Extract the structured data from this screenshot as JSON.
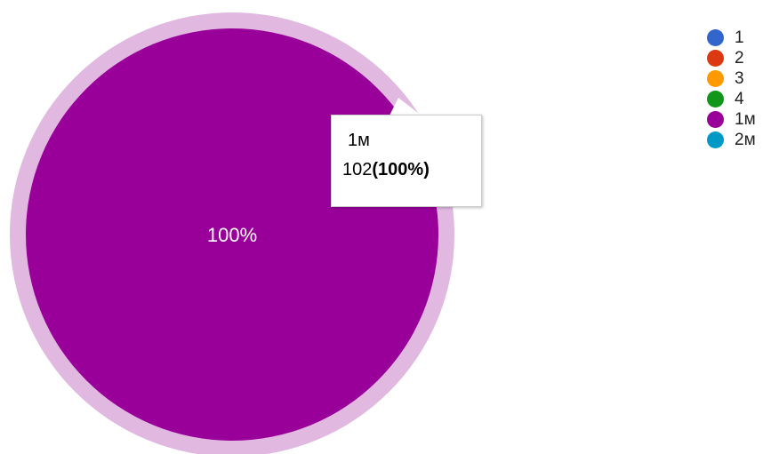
{
  "chart_data": {
    "type": "pie",
    "categories": [
      "1",
      "2",
      "3",
      "4",
      "1м",
      "2м"
    ],
    "values": [
      0,
      0,
      0,
      0,
      102,
      0
    ],
    "colors": [
      "#3366cc",
      "#dc3912",
      "#ff9900",
      "#109618",
      "#990099",
      "#0099c6"
    ],
    "slice_labels": [
      "",
      "",
      "",
      "",
      "100%",
      ""
    ],
    "legend_position": "right",
    "highlighted_category": "1м",
    "highlight_ring_color": "#e0b8e0"
  },
  "tooltip": {
    "name": "1м",
    "value": "102",
    "percent": "(100%)"
  }
}
